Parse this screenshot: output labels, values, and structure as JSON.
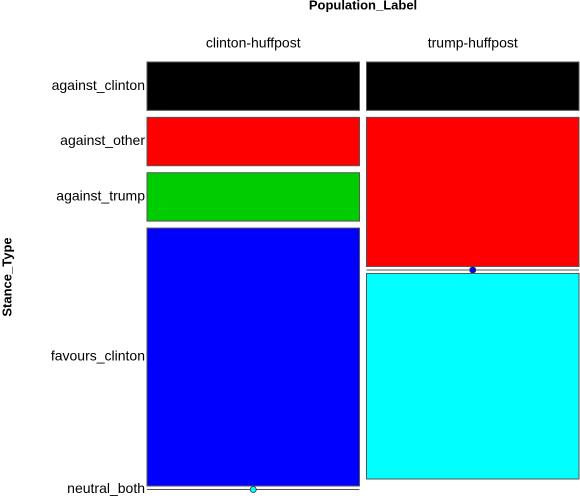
{
  "chart_data": {
    "type": "mosaic",
    "title": "Population_Label",
    "y_label": "Stance_Type",
    "categories": [
      "against_clinton",
      "against_other",
      "against_trump",
      "favours_clinton",
      "neutral_both"
    ],
    "colors": [
      "#000000",
      "#ff0000",
      "#00cd00",
      "#0000ff",
      "#00ffff"
    ],
    "series": [
      {
        "name": "clinton-huffpost",
        "values": [
          12,
          12,
          12,
          64,
          0
        ]
      },
      {
        "name": "trump-huffpost",
        "values": [
          12,
          37,
          0,
          0,
          51
        ]
      }
    ]
  }
}
